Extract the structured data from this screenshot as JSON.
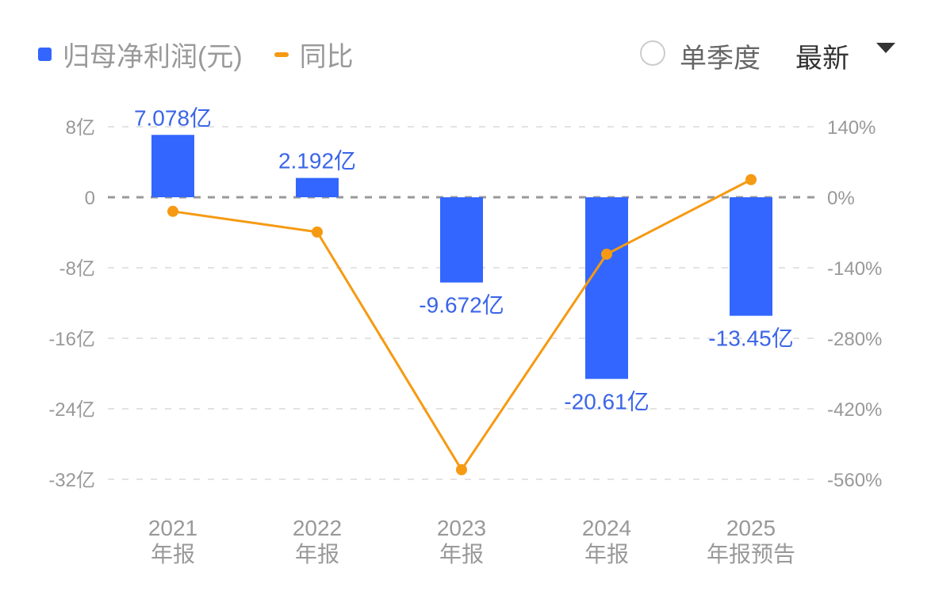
{
  "legend": {
    "bar_label": "归母净利润(元)",
    "line_label": "同比",
    "bar_color": "#3366ff",
    "line_color": "#f59a12"
  },
  "controls": {
    "radio_label": "单季度",
    "radio_checked": false,
    "select_value": "最新",
    "dropdown_icon": "caret-down-icon"
  },
  "chart_data": {
    "type": "bar+line",
    "title": "",
    "categories": [
      "2021 年报",
      "2022 年报",
      "2023 年报",
      "2024 年报",
      "2025 年报预告"
    ],
    "category_lines": [
      [
        "2021",
        "年报"
      ],
      [
        "2022",
        "年报"
      ],
      [
        "2023",
        "年报"
      ],
      [
        "2024",
        "年报"
      ],
      [
        "2025",
        "年报预告"
      ]
    ],
    "series": [
      {
        "name": "归母净利润(元)",
        "type": "bar",
        "axis": "left",
        "unit": "亿",
        "values": [
          7.078,
          2.192,
          -9.672,
          -20.61,
          -13.45
        ],
        "labels": [
          "7.078亿",
          "2.192亿",
          "-9.672亿",
          "-20.61亿",
          "-13.45亿"
        ],
        "color": "#3366ff"
      },
      {
        "name": "同比",
        "type": "line",
        "axis": "right",
        "unit": "%",
        "values": [
          -28,
          -69,
          -541,
          -113,
          35
        ],
        "color": "#f59a12"
      }
    ],
    "left_axis": {
      "ticks": [
        8,
        0,
        -8,
        -16,
        -24,
        -32
      ],
      "tick_labels": [
        "8亿",
        "0",
        "-8亿",
        "-16亿",
        "-24亿",
        "-32亿"
      ],
      "range": [
        -32,
        8
      ]
    },
    "right_axis": {
      "ticks": [
        140,
        0,
        -140,
        -280,
        -420,
        -560
      ],
      "tick_labels": [
        "140%",
        "0%",
        "-140%",
        "-280%",
        "-420%",
        "-560%"
      ],
      "range": [
        -560,
        140
      ]
    },
    "grid": true,
    "legend_position": "top-left",
    "xlabel": "",
    "ylabel": ""
  }
}
